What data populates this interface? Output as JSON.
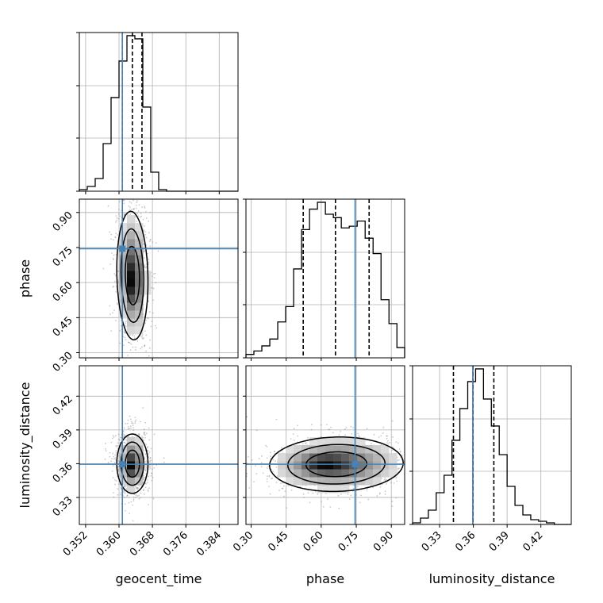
{
  "chart_data": {
    "type": "corner",
    "parameters": [
      "geocent_time",
      "phase",
      "luminosity_distance"
    ],
    "truths": {
      "geocent_time": 0.3608,
      "phase": 0.745,
      "luminosity_distance": 0.3595
    },
    "truth_color": "#4682b4",
    "ranges": {
      "geocent_time": [
        0.3505,
        0.3885
      ],
      "phase": [
        0.278,
        0.957
      ],
      "luminosity_distance": [
        0.306,
        0.447
      ]
    },
    "ticks": {
      "geocent_time": [
        0.352,
        0.36,
        0.368,
        0.376,
        0.384
      ],
      "phase": [
        0.3,
        0.45,
        0.6,
        0.75,
        0.9
      ],
      "luminosity_distance": [
        0.33,
        0.36,
        0.39,
        0.42
      ]
    },
    "tick_labels": {
      "geocent_time": [
        "0.352",
        "0.360",
        "0.368",
        "0.376",
        "0.384"
      ],
      "phase": [
        "0.30",
        "0.45",
        "0.60",
        "0.75",
        "0.90"
      ],
      "luminosity_distance": [
        "0.33",
        "0.36",
        "0.39",
        "0.42"
      ]
    },
    "quantiles": {
      "geocent_time": [
        0.3608,
        0.3632,
        0.3655
      ],
      "phase": [
        0.523,
        0.661,
        0.805
      ],
      "luminosity_distance": [
        0.3423,
        0.3597,
        0.3782
      ]
    },
    "histograms": {
      "geocent_time": {
        "edges": [
          0.3505,
          0.3524,
          0.3543,
          0.3562,
          0.3581,
          0.36,
          0.3619,
          0.3638,
          0.3657,
          0.3676,
          0.3695,
          0.3714,
          0.3733,
          0.3752,
          0.3771,
          0.379,
          0.3809,
          0.3828,
          0.3847,
          0.3866,
          0.3885
        ],
        "counts": [
          0.01,
          0.03,
          0.08,
          0.3,
          0.59,
          0.82,
          0.98,
          0.96,
          0.53,
          0.12,
          0.01,
          0,
          0,
          0,
          0,
          0,
          0,
          0,
          0,
          0
        ]
      },
      "phase": {
        "edges": [
          0.278,
          0.312,
          0.346,
          0.38,
          0.414,
          0.448,
          0.482,
          0.516,
          0.55,
          0.584,
          0.618,
          0.652,
          0.686,
          0.72,
          0.754,
          0.788,
          0.822,
          0.856,
          0.89,
          0.924,
          0.957
        ],
        "counts": [
          0.02,
          0.04,
          0.07,
          0.11,
          0.21,
          0.3,
          0.52,
          0.75,
          0.87,
          0.91,
          0.84,
          0.82,
          0.76,
          0.77,
          0.8,
          0.7,
          0.61,
          0.34,
          0.2,
          0.06
        ],
        "ymax": 1.0
      },
      "luminosity_distance": {
        "edges": [
          0.306,
          0.313,
          0.32,
          0.327,
          0.334,
          0.341,
          0.348,
          0.355,
          0.362,
          0.369,
          0.376,
          0.383,
          0.39,
          0.397,
          0.404,
          0.411,
          0.418,
          0.425,
          0.432,
          0.439,
          0.447
        ],
        "counts": [
          0.01,
          0.04,
          0.09,
          0.2,
          0.31,
          0.53,
          0.73,
          0.9,
          0.98,
          0.79,
          0.62,
          0.44,
          0.24,
          0.12,
          0.06,
          0.03,
          0.02,
          0.01,
          0.0,
          0.0
        ]
      }
    },
    "joint": {
      "geocent_time|phase": {
        "mean": [
          0.3632,
          0.63
        ],
        "sd": [
          0.0017,
          0.125
        ],
        "rho": -0.1,
        "peak": [
          0.3634,
          0.6
        ]
      },
      "geocent_time|luminosity_distance": {
        "mean": [
          0.3632,
          0.36
        ],
        "sd": [
          0.0017,
          0.012
        ],
        "rho": 0.0,
        "peak": [
          0.3632,
          0.3585
        ]
      },
      "phase|luminosity_distance": {
        "mean": [
          0.665,
          0.3595
        ],
        "sd": [
          0.13,
          0.011
        ],
        "rho": 0.05,
        "peak": [
          0.6,
          0.36
        ]
      }
    },
    "contour_levels_sigma": [
      1.0,
      1.6,
      2.2
    ],
    "grid": true
  }
}
